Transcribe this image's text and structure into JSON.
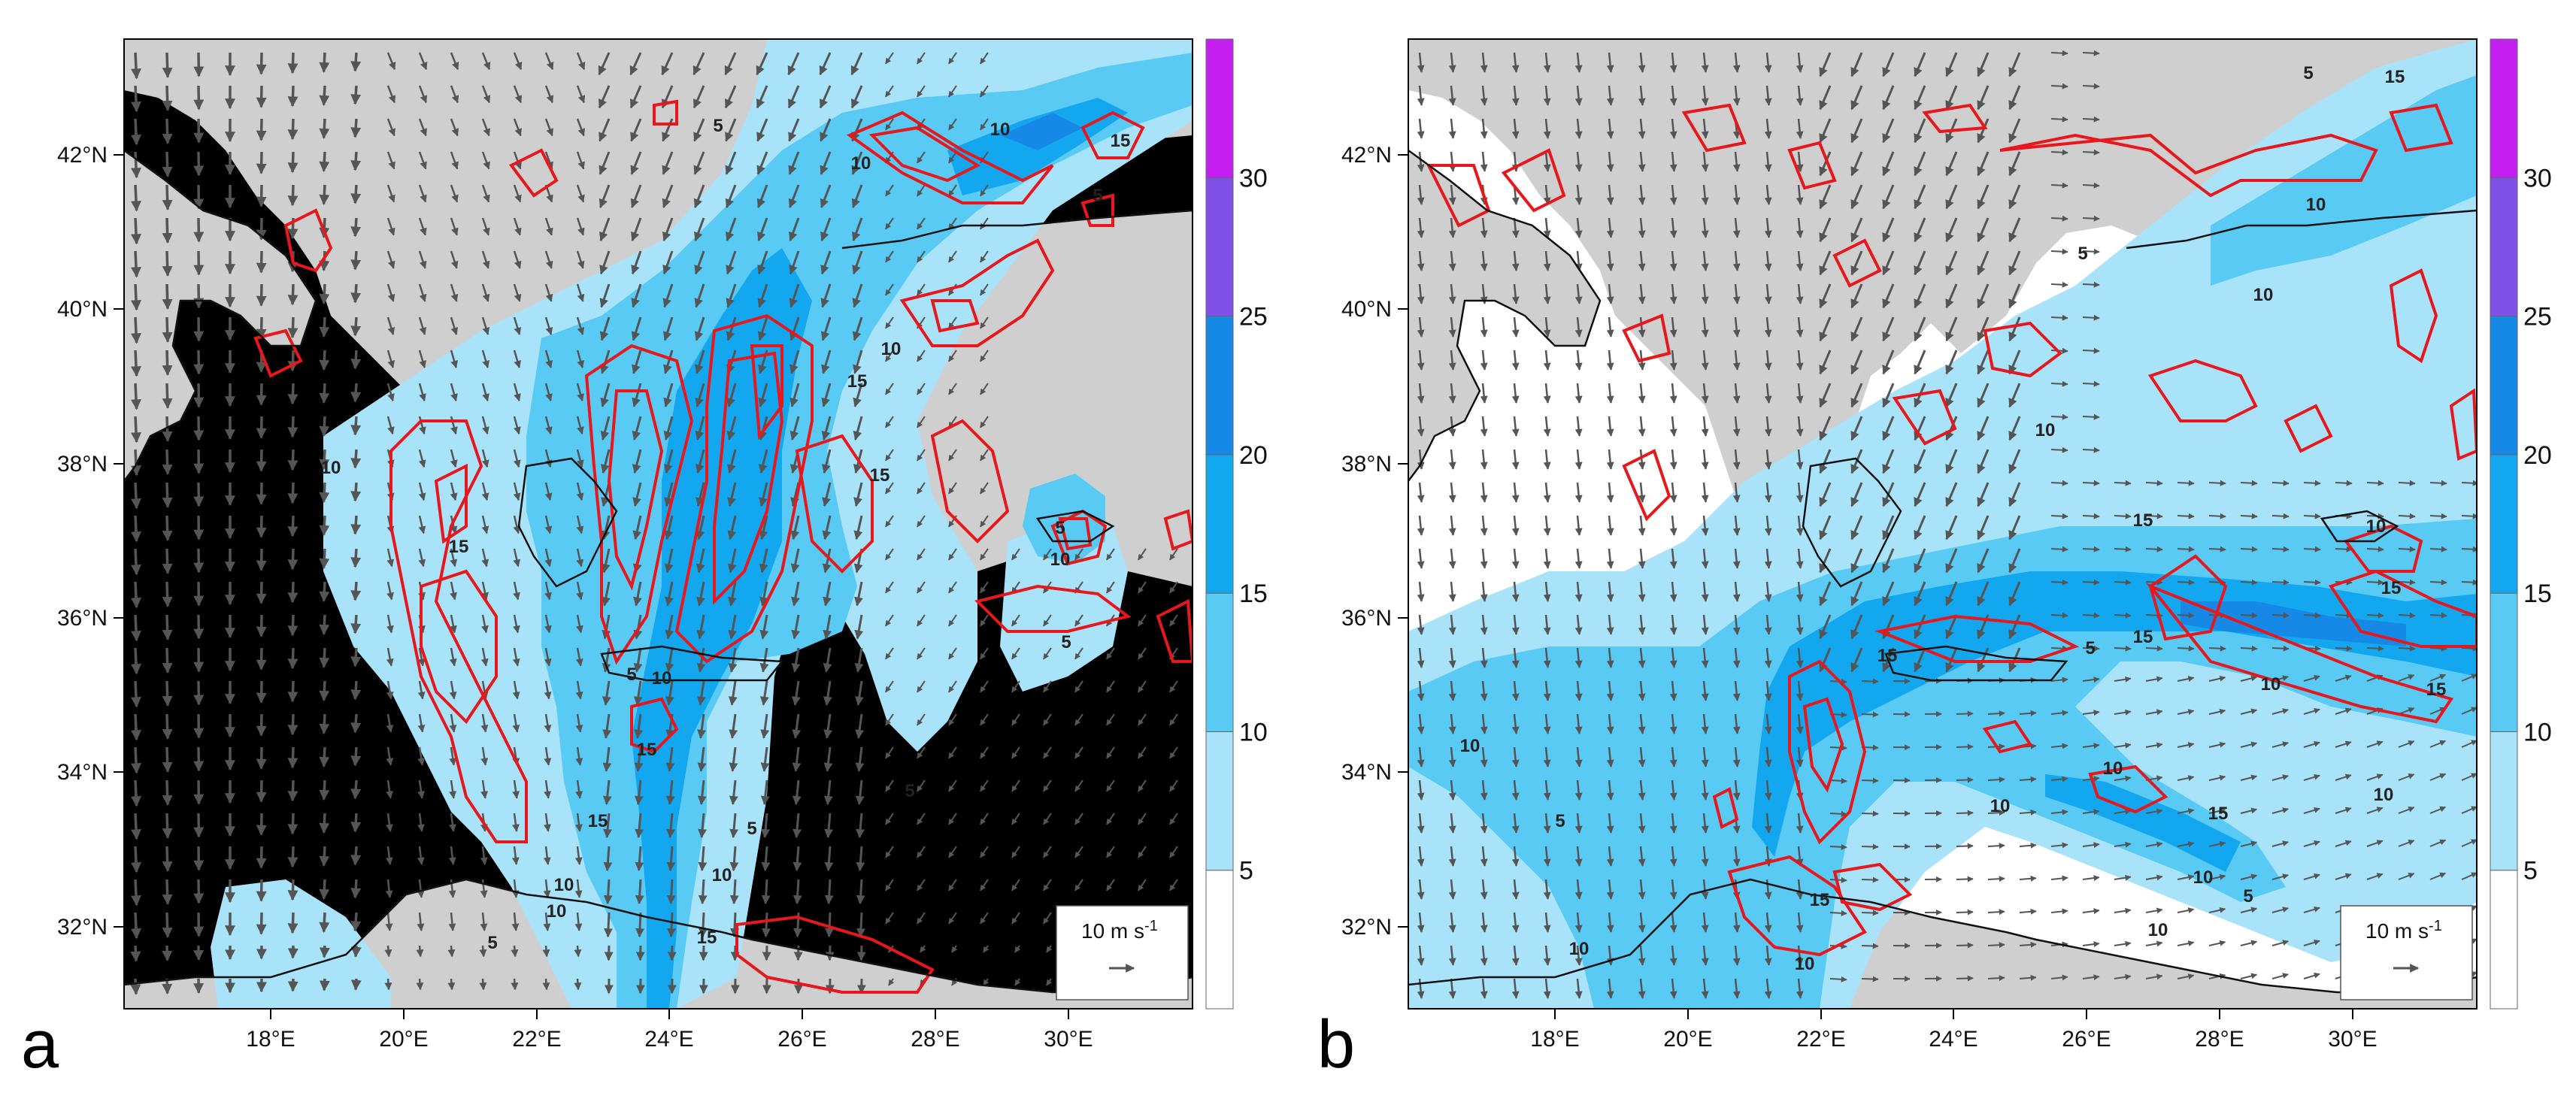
{
  "colors": {
    "land": "#cfcfcf",
    "sea": "#ffffff",
    "c5_10": "#a9e3f9",
    "c10_15": "#58caf4",
    "c15_20": "#13a7ef",
    "c20_25": "#1688e6",
    "c25_30": "#8050e6",
    "c30p": "#c41ff0",
    "contour": "#e8171c",
    "arrow": "#555555",
    "coast": "#111111"
  },
  "axes": {
    "lat_labels": [
      "42°N",
      "40°N",
      "38°N",
      "36°N",
      "34°N",
      "32°N"
    ],
    "lon_labels": [
      "18°E",
      "20°E",
      "22°E",
      "24°E",
      "26°E",
      "28°E",
      "30°E"
    ]
  },
  "colorbar": {
    "labels": [
      "5",
      "10",
      "15",
      "20",
      "25",
      "30"
    ]
  },
  "panels": [
    {
      "label": "a",
      "legend_title": "10 m s",
      "legend_exp": "-1",
      "contour_labels": [
        "5",
        "10",
        "15",
        "10",
        "5",
        "15",
        "10",
        "15",
        "5",
        "10",
        "5",
        "10",
        "15",
        "5",
        "10",
        "15",
        "15",
        "5",
        "10",
        "15",
        "5",
        "10",
        "5",
        "10"
      ]
    },
    {
      "label": "b",
      "legend_title": "10 m s",
      "legend_exp": "-1",
      "contour_labels": [
        "5",
        "15",
        "10",
        "10",
        "5",
        "10",
        "15",
        "10",
        "15",
        "15",
        "10",
        "5",
        "15",
        "10",
        "15",
        "10",
        "10",
        "15",
        "10",
        "5",
        "10",
        "5",
        "10",
        "10",
        "10",
        "15"
      ]
    }
  ]
}
